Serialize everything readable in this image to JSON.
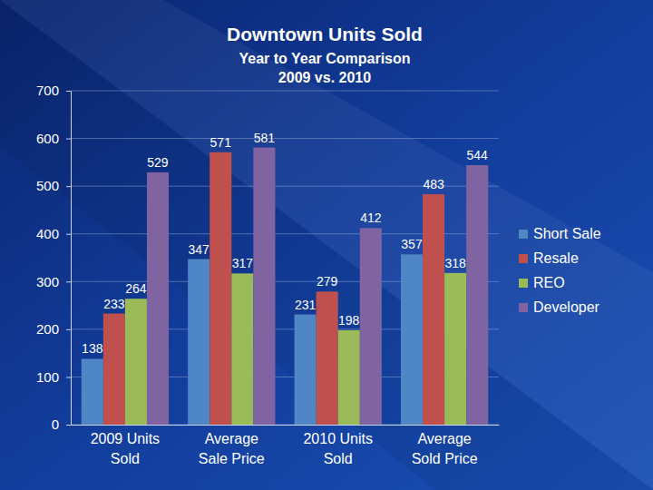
{
  "chart_data": {
    "type": "bar",
    "title": "Downtown Units Sold",
    "subtitle": [
      "Year to Year Comparison",
      "2009 vs. 2010"
    ],
    "categories": [
      "2009 Units Sold",
      "Average Sale Price",
      "2010 Units Sold",
      "Average Sold Price"
    ],
    "series": [
      {
        "name": "Short Sale",
        "color": "#4f86c6",
        "values": [
          138,
          347,
          231,
          357
        ]
      },
      {
        "name": "Resale",
        "color": "#c0504d",
        "values": [
          233,
          571,
          279,
          483
        ]
      },
      {
        "name": "REO",
        "color": "#9bbb59",
        "values": [
          264,
          317,
          198,
          318
        ]
      },
      {
        "name": "Developer",
        "color": "#8064a2",
        "values": [
          529,
          581,
          412,
          544
        ]
      }
    ],
    "ylim": [
      0,
      700
    ],
    "yticks": [
      0,
      100,
      200,
      300,
      400,
      500,
      600,
      700
    ],
    "grid": true,
    "legend": "right",
    "data_labels": true
  }
}
